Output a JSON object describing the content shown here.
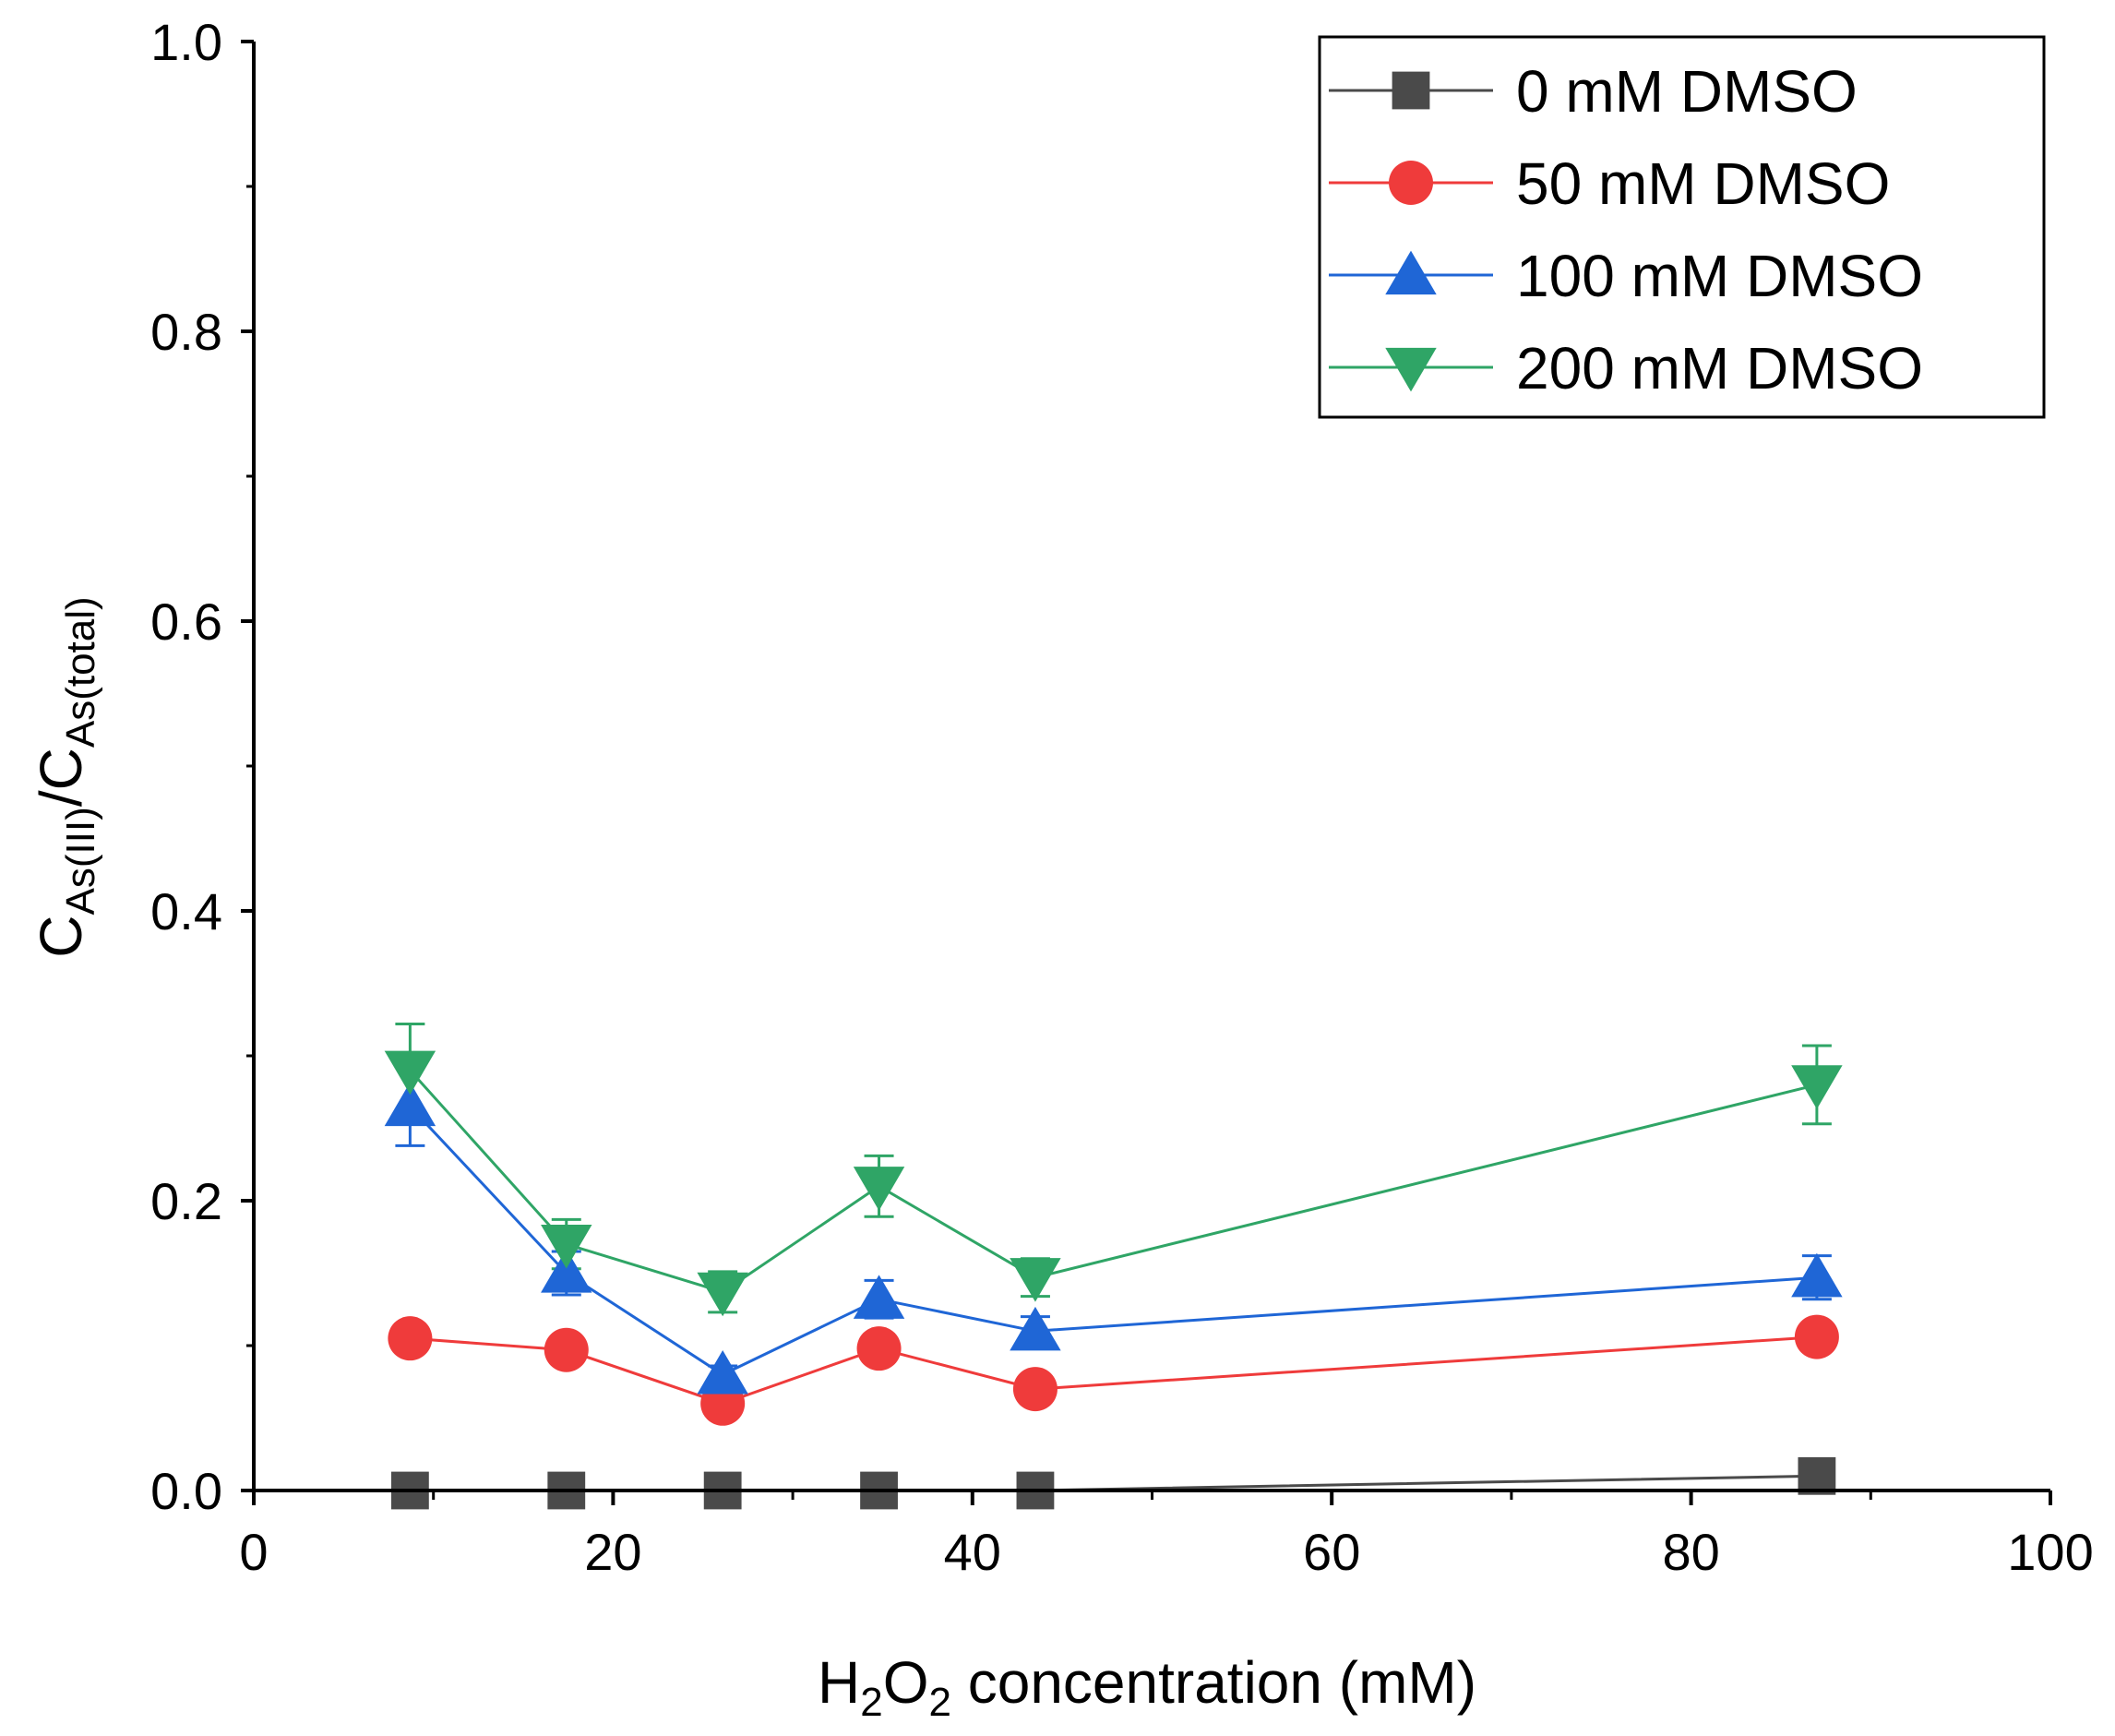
{
  "chart_data": {
    "type": "line",
    "title": "",
    "xlabel": {
      "main": "H",
      "sub1": "2",
      "mid": "O",
      "sub2": "2",
      "rest": " concentration (mM)"
    },
    "ylabel": {
      "c1": "C",
      "sub1": "As(III)",
      "slash": "/C",
      "sub2": "As(total)"
    },
    "xlim": [
      0,
      100
    ],
    "ylim": [
      0,
      1.0
    ],
    "xticks": [
      0,
      20,
      40,
      60,
      80,
      100
    ],
    "xtick_labels": [
      "0",
      "20",
      "40",
      "60",
      "80",
      "100"
    ],
    "yticks": [
      0.0,
      0.2,
      0.4,
      0.6,
      0.8,
      1.0
    ],
    "ytick_labels": [
      "0.0",
      "0.2",
      "0.4",
      "0.6",
      "0.8",
      "1.0"
    ],
    "x": [
      8.7,
      17.4,
      26.1,
      34.8,
      43.5,
      87.0
    ],
    "series": [
      {
        "name": "0 mM DMSO",
        "color": "#4a4a4a",
        "marker": "square",
        "values": [
          0.0,
          0.0,
          0.0,
          0.0,
          0.0,
          0.01
        ],
        "errors": [
          0.003,
          0.003,
          0.003,
          0.003,
          0.003,
          0.004
        ]
      },
      {
        "name": "50 mM DMSO",
        "color": "#ef3b3b",
        "marker": "circle",
        "values": [
          0.105,
          0.097,
          0.06,
          0.098,
          0.07,
          0.106
        ],
        "errors": [
          0.008,
          0.007,
          0.006,
          0.008,
          0.006,
          0.008
        ]
      },
      {
        "name": "100 mM DMSO",
        "color": "#1f66d6",
        "marker": "triangle-up",
        "values": [
          0.265,
          0.15,
          0.08,
          0.132,
          0.11,
          0.147
        ],
        "errors": [
          0.027,
          0.015,
          0.006,
          0.013,
          0.01,
          0.015
        ]
      },
      {
        "name": "200 mM DMSO",
        "color": "#2fa566",
        "marker": "triangle-down",
        "values": [
          0.29,
          0.17,
          0.137,
          0.21,
          0.147,
          0.28
        ],
        "errors": [
          0.032,
          0.017,
          0.014,
          0.021,
          0.013,
          0.027
        ]
      }
    ],
    "legend_position": "top-right",
    "grid": false
  }
}
